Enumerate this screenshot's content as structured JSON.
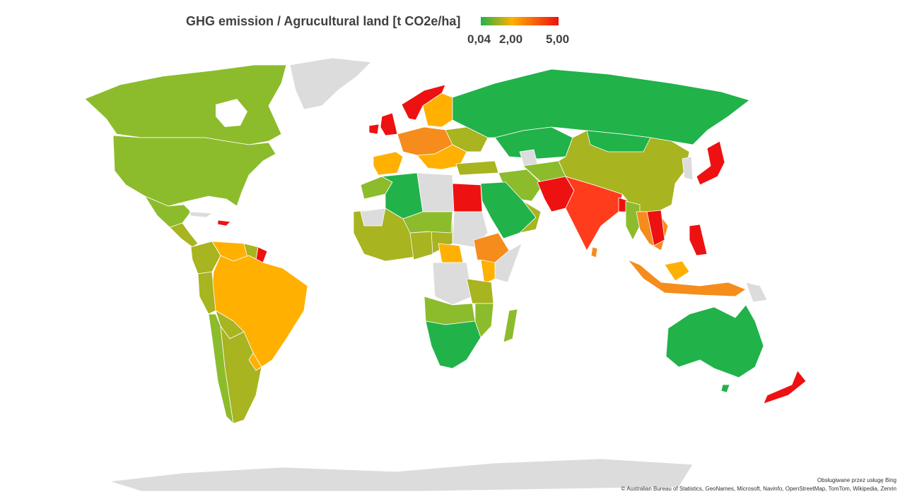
{
  "title": "GHG emission / Agrucultural land [t CO2e/ha]",
  "legend": {
    "min_label": "0,04",
    "mid_label": "2,00",
    "max_label": "5,00",
    "colors": {
      "low": "#21b24a",
      "mid": "#ffb000",
      "high": "#ee1111",
      "nodata": "#dcdcdc"
    }
  },
  "credits": {
    "powered_by": "Obsługiwane przez usługę Bing",
    "attribution": "© Australian Bureau of Statistics, GeoNames, Microsoft, Navinfo, OpenStreetMap, TomTom, Wikipedia, Zenrin"
  }
}
